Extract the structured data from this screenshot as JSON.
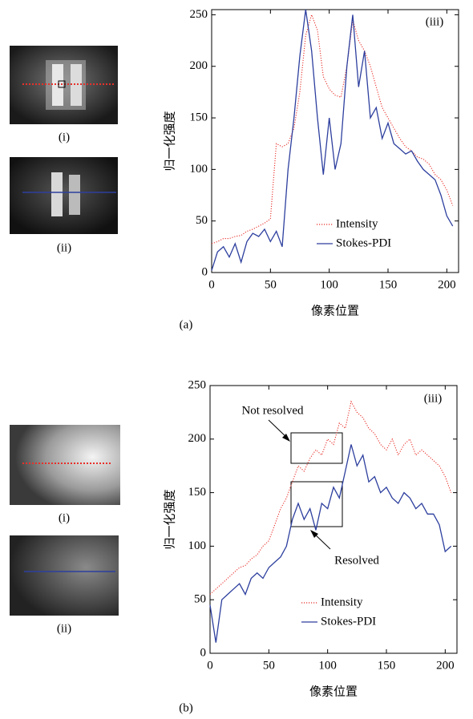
{
  "chart_data": [
    {
      "type": "line",
      "panel_label": "(a)",
      "inset_label": "(iii)",
      "image_labels": [
        "(i)",
        "(ii)"
      ],
      "xlabel": "像素位置",
      "ylabel": "归一化强度",
      "x": [
        0,
        5,
        10,
        15,
        20,
        25,
        30,
        35,
        40,
        45,
        50,
        55,
        60,
        65,
        70,
        75,
        80,
        85,
        90,
        95,
        100,
        105,
        110,
        115,
        120,
        125,
        130,
        135,
        140,
        145,
        150,
        155,
        160,
        165,
        170,
        175,
        180,
        185,
        190,
        195,
        200,
        205
      ],
      "series": [
        {
          "name": "Intensity",
          "color": "#e8302a",
          "style": "dotted",
          "values": [
            28,
            30,
            33,
            33,
            35,
            36,
            40,
            42,
            45,
            48,
            52,
            125,
            122,
            125,
            140,
            175,
            230,
            250,
            235,
            190,
            178,
            172,
            170,
            200,
            245,
            225,
            215,
            200,
            180,
            160,
            150,
            140,
            130,
            122,
            118,
            112,
            110,
            105,
            95,
            90,
            80,
            65
          ]
        },
        {
          "name": "Stokes-PDI",
          "color": "#2d3f9e",
          "style": "solid",
          "values": [
            2,
            20,
            25,
            15,
            28,
            10,
            30,
            38,
            35,
            42,
            30,
            40,
            25,
            100,
            150,
            210,
            255,
            215,
            150,
            95,
            150,
            100,
            125,
            200,
            250,
            180,
            215,
            150,
            160,
            130,
            145,
            125,
            120,
            115,
            118,
            108,
            100,
            95,
            90,
            75,
            55,
            45
          ]
        }
      ],
      "xlim": [
        0,
        210
      ],
      "ylim": [
        0,
        255
      ],
      "xticks": [
        0,
        50,
        100,
        150,
        200
      ],
      "yticks": [
        0,
        50,
        100,
        150,
        200,
        250
      ]
    },
    {
      "type": "line",
      "panel_label": "(b)",
      "inset_label": "(iii)",
      "image_labels": [
        "(i)",
        "(ii)"
      ],
      "xlabel": "像素位置",
      "ylabel": "归一化强度",
      "annotations": [
        "Not resolved",
        "Resolved"
      ],
      "x": [
        0,
        5,
        10,
        15,
        20,
        25,
        30,
        35,
        40,
        45,
        50,
        55,
        60,
        65,
        70,
        75,
        80,
        85,
        90,
        95,
        100,
        105,
        110,
        115,
        120,
        125,
        130,
        135,
        140,
        145,
        150,
        155,
        160,
        165,
        170,
        175,
        180,
        185,
        190,
        195,
        200,
        205
      ],
      "series": [
        {
          "name": "Intensity",
          "color": "#e8302a",
          "style": "dotted",
          "values": [
            55,
            60,
            65,
            70,
            75,
            80,
            82,
            88,
            92,
            100,
            105,
            120,
            135,
            145,
            160,
            175,
            170,
            182,
            190,
            185,
            200,
            195,
            215,
            210,
            235,
            225,
            220,
            210,
            205,
            195,
            190,
            200,
            185,
            195,
            200,
            185,
            190,
            185,
            180,
            175,
            165,
            150
          ]
        },
        {
          "name": "Stokes-PDI",
          "color": "#2d3f9e",
          "style": "solid",
          "values": [
            45,
            10,
            50,
            55,
            60,
            65,
            55,
            70,
            75,
            70,
            80,
            85,
            90,
            100,
            125,
            140,
            125,
            135,
            115,
            140,
            135,
            155,
            145,
            170,
            195,
            175,
            185,
            160,
            165,
            150,
            155,
            145,
            140,
            150,
            145,
            135,
            140,
            130,
            130,
            120,
            95,
            100
          ]
        }
      ],
      "xlim": [
        0,
        210
      ],
      "ylim": [
        0,
        250
      ],
      "xticks": [
        0,
        50,
        100,
        150,
        200
      ],
      "yticks": [
        0,
        50,
        100,
        150,
        200,
        250
      ]
    }
  ]
}
